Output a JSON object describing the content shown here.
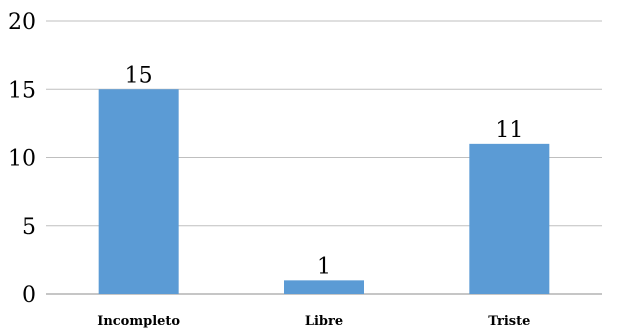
{
  "chart_data": {
    "type": "bar",
    "categories": [
      "Incompleto",
      "Libre",
      "Triste"
    ],
    "values": [
      15,
      1,
      11
    ],
    "title": "",
    "xlabel": "",
    "ylabel": "",
    "ylim": [
      0,
      20
    ],
    "yticks": [
      0,
      5,
      10,
      15,
      20
    ],
    "grid": true,
    "legend": "none",
    "bar_color": "#5b9bd5",
    "data_labels": true
  }
}
